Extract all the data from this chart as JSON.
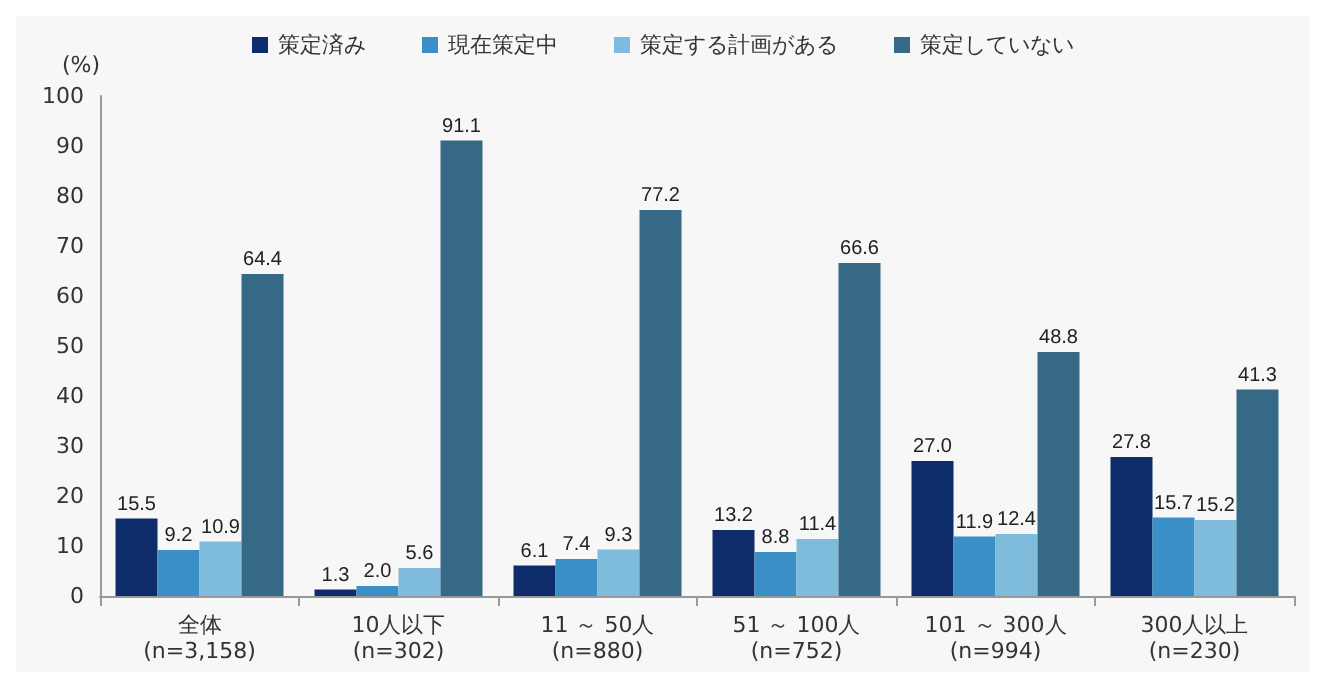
{
  "chart_data": {
    "type": "bar",
    "ylabel": "(%)",
    "categories": [
      "全体\n(n=3,158)",
      "10人以下\n(n=302)",
      "11 ～ 50人\n(n=880)",
      "51 ～ 100人\n(n=752)",
      "101 ～ 300人\n(n=994)",
      "300人以上\n(n=230)"
    ],
    "series": [
      {
        "name": "策定済み",
        "color": "#0e2c6a",
        "values": [
          15.5,
          1.3,
          6.1,
          13.2,
          27.0,
          27.8
        ]
      },
      {
        "name": "現在策定中",
        "color": "#3a8fc6",
        "values": [
          9.2,
          2.0,
          7.4,
          8.8,
          11.9,
          15.7
        ]
      },
      {
        "name": "策定する計画がある",
        "color": "#7fbcdc",
        "values": [
          10.9,
          5.6,
          9.3,
          11.4,
          12.4,
          15.2
        ]
      },
      {
        "name": "策定していない",
        "color": "#356985",
        "values": [
          64.4,
          91.1,
          77.2,
          66.6,
          48.8,
          41.3
        ]
      }
    ],
    "value_labels": [
      [
        "15.5",
        "1.3",
        "6.1",
        "13.2",
        "27.0",
        "27.8"
      ],
      [
        "9.2",
        "2.0",
        "7.4",
        "8.8",
        "11.9",
        "15.7"
      ],
      [
        "10.9",
        "5.6",
        "9.3",
        "11.4",
        "12.4",
        "15.2"
      ],
      [
        "64.4",
        "91.1",
        "77.2",
        "66.6",
        "48.8",
        "41.3"
      ]
    ],
    "ylim": [
      0,
      100
    ],
    "yticks": [
      0,
      10,
      20,
      30,
      40,
      50,
      60,
      70,
      80,
      90,
      100
    ],
    "grid": false,
    "legend": "top"
  }
}
